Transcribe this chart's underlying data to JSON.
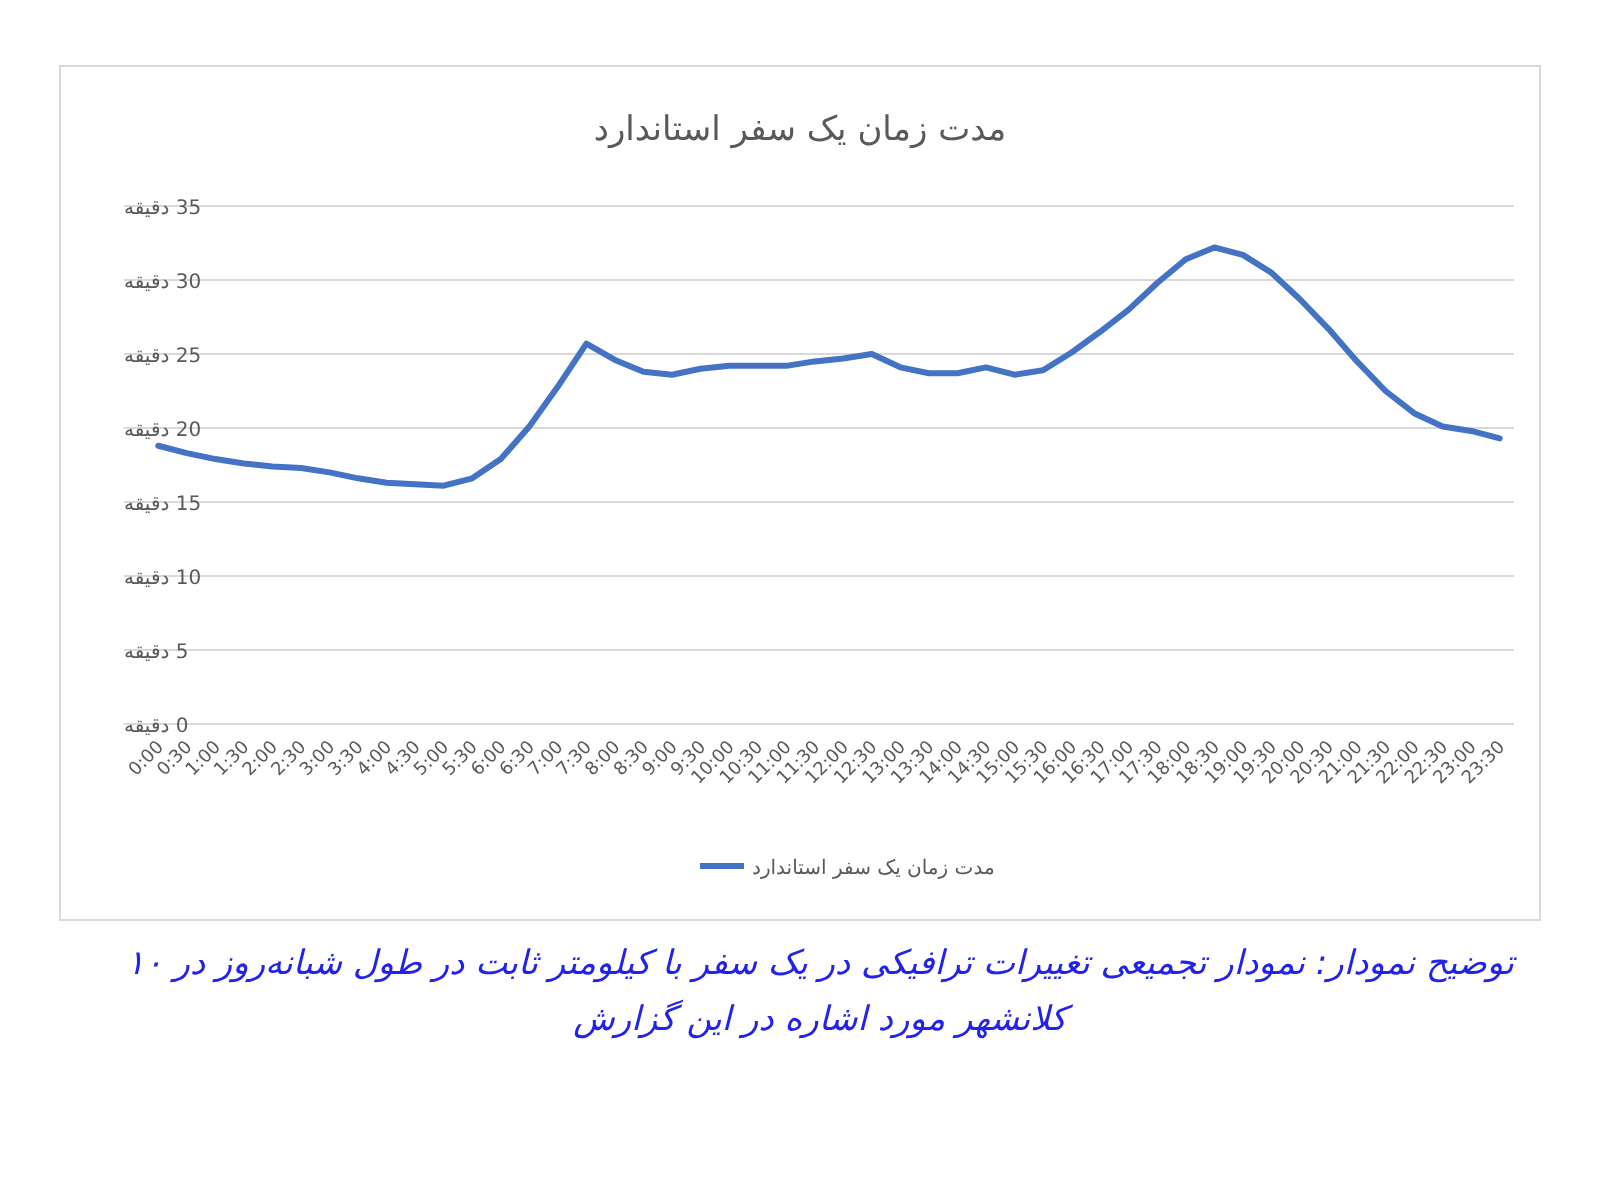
{
  "chart_data": {
    "type": "line",
    "title": "مدت زمان یک سفر استاندارد",
    "categories": [
      "0:00",
      "0:30",
      "1:00",
      "1:30",
      "2:00",
      "2:30",
      "3:00",
      "3:30",
      "4:00",
      "4:30",
      "5:00",
      "5:30",
      "6:00",
      "6:30",
      "7:00",
      "7:30",
      "8:00",
      "8:30",
      "9:00",
      "9:30",
      "10:00",
      "10:30",
      "11:00",
      "11:30",
      "12:00",
      "12:30",
      "13:00",
      "13:30",
      "14:00",
      "14:30",
      "15:00",
      "15:30",
      "16:00",
      "16:30",
      "17:00",
      "17:30",
      "18:00",
      "18:30",
      "19:00",
      "19:30",
      "20:00",
      "20:30",
      "21:00",
      "21:30",
      "22:00",
      "22:30",
      "23:00",
      "23:30"
    ],
    "series": [
      {
        "name": "مدت زمان یک سفر استاندارد",
        "color": "#4472c4",
        "values": [
          18.8,
          18.3,
          17.9,
          17.6,
          17.4,
          17.3,
          17.0,
          16.6,
          16.3,
          16.2,
          16.1,
          16.6,
          17.9,
          20.1,
          22.8,
          25.7,
          24.6,
          23.8,
          23.6,
          24.0,
          24.2,
          24.2,
          24.2,
          24.5,
          24.7,
          25.0,
          24.1,
          23.7,
          23.7,
          24.1,
          23.6,
          23.9,
          25.1,
          26.5,
          28.0,
          29.8,
          31.4,
          32.2,
          31.7,
          30.5,
          28.7,
          26.7,
          24.5,
          22.5,
          21.0,
          20.1,
          19.8,
          19.3
        ]
      }
    ],
    "ylim": [
      0,
      35
    ],
    "yticks": [
      {
        "value": 0,
        "label": "0 دقیقه"
      },
      {
        "value": 5,
        "label": "5 دقیقه"
      },
      {
        "value": 10,
        "label": "10 دقیقه"
      },
      {
        "value": 15,
        "label": "15 دقیقه"
      },
      {
        "value": 20,
        "label": "20 دقیقه"
      },
      {
        "value": 25,
        "label": "25 دقیقه"
      },
      {
        "value": 30,
        "label": "30 دقیقه"
      },
      {
        "value": 35,
        "label": "35 دقیقه"
      }
    ],
    "grid": "y",
    "legend": "bottom",
    "marker": "none",
    "line_style": "solid",
    "annotations": [
      "توضیح نمودار: نمودار تجمیعی تغییرات ترافیکی در یک سفر با کیلومتر ثابت در طول شبانه‌روز در ۱۰ کلانشهر مورد اشاره در این گزارش"
    ]
  }
}
